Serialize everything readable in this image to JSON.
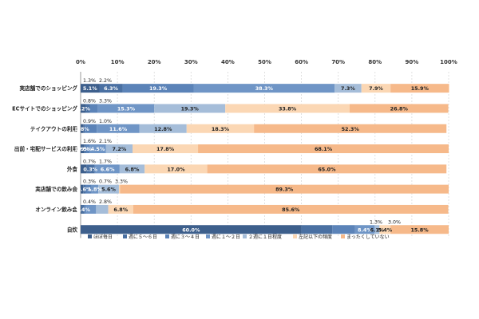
{
  "chart_data": {
    "type": "bar",
    "orientation": "horizontal",
    "stacked": "percent",
    "xlim": [
      0,
      100
    ],
    "x_ticks": [
      "0%",
      "10%",
      "20%",
      "30%",
      "40%",
      "50%",
      "60%",
      "70%",
      "80%",
      "90%",
      "100%"
    ],
    "grid": true,
    "legend_position": "bottom",
    "categories": [
      "実店舗でのショッピング",
      "ECサイトでのショッピング",
      "テイクアウトの利用",
      "出前・宅配サービスの利用",
      "外食",
      "実店舗での飲み会",
      "オンライン飲み会",
      "自炊"
    ],
    "series": [
      {
        "name": "ほぼ毎日",
        "color": "#3d5f8c",
        "values": [
          5.1,
          1.3,
          0.8,
          0.9,
          1.6,
          0.7,
          0.3,
          60.0
        ]
      },
      {
        "name": "週に５～６日",
        "color": "#4a70a2",
        "values": [
          6.3,
          1.2,
          0.3,
          0.5,
          2.1,
          0.6,
          0.7,
          8.4
        ]
      },
      {
        "name": "週に３～４日",
        "color": "#5b83b8",
        "values": [
          19.3,
          2.2,
          3.3,
          1.0,
          0.3,
          1.7,
          0.4,
          6.1
        ]
      },
      {
        "name": "週に１～２日",
        "color": "#6f95c6",
        "values": [
          38.3,
          15.3,
          11.6,
          4.5,
          6.6,
          1.8,
          2.8,
          5.4
        ]
      },
      {
        "name": "２週に１日程度",
        "color": "#a5bdd9",
        "values": [
          7.3,
          19.3,
          12.8,
          7.2,
          6.8,
          5.6,
          3.3,
          1.3
        ]
      },
      {
        "name": "左記以下の頻度",
        "color": "#fbd7b4",
        "values": [
          7.9,
          33.8,
          18.3,
          17.8,
          17.0,
          0.3,
          6.8,
          3.0
        ]
      },
      {
        "name": "まったくしていない",
        "color": "#f6b98a",
        "values": [
          15.9,
          26.8,
          52.3,
          68.1,
          65.0,
          89.3,
          85.6,
          15.8
        ]
      }
    ],
    "inline_labels": [
      [
        "5.1%",
        "6.3%",
        "19.3%",
        "38.3%",
        "7.3%",
        "7.9%",
        "15.9%"
      ],
      [
        "1.2%",
        "",
        "",
        "15.3%",
        "19.3%",
        "33.8%",
        "26.8%"
      ],
      [
        "0.8%",
        "",
        "",
        "11.6%",
        "12.8%",
        "18.3%",
        "52.3%"
      ],
      [
        "0.9%",
        "0.5%",
        "",
        "4.5%",
        "7.2%",
        "17.8%",
        "68.1%"
      ],
      [
        "",
        "0.3%",
        "",
        "6.6%",
        "6.8%",
        "17.0%",
        "65.0%"
      ],
      [
        "",
        "0.6%",
        "",
        "1.8%",
        "5.6%",
        "",
        "89.3%"
      ],
      [
        "",
        "0.4%",
        "",
        "",
        "",
        "6.8%",
        "85.6%"
      ],
      [
        "60.0%",
        "",
        "",
        "8.4%",
        "6.1%",
        "5.4%",
        "15.8%"
      ]
    ],
    "callouts": [
      [
        "1.3%",
        "2.2%"
      ],
      [
        "0.8%",
        "3.3%"
      ],
      [
        "0.9%",
        "1.0%"
      ],
      [
        "1.6%",
        "2.1%"
      ],
      [
        "0.7%",
        "1.7%"
      ],
      [
        "0.3%",
        "0.7%",
        "3.3%"
      ],
      [
        "0.4%",
        "2.8%"
      ],
      [
        "1.3%",
        "3.0%"
      ]
    ]
  }
}
